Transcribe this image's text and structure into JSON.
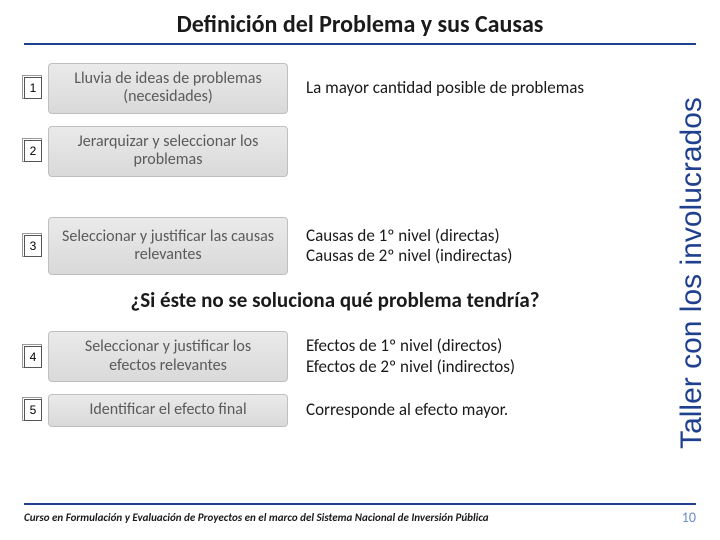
{
  "title": "Definición del Problema y sus Causas",
  "sidebar": "Taller con los involucrados",
  "steps": [
    {
      "num": "1",
      "label": "Lluvia de ideas de problemas (necesidades)",
      "desc": "La mayor cantidad posible de problemas"
    },
    {
      "num": "2",
      "label": "Jerarquizar y seleccionar los problemas",
      "desc": ""
    },
    {
      "num": "3",
      "label": "Seleccionar y justificar las causas relevantes",
      "desc": "Causas de 1º nivel (directas)\nCausas de 2º nivel (indirectas)"
    },
    {
      "num": "4",
      "label": "Seleccionar y justificar los efectos relevantes",
      "desc": "Efectos de 1º nivel (directos)\nEfectos de 2º nivel (indirectos)"
    },
    {
      "num": "5",
      "label": "Identificar el efecto final",
      "desc": "Corresponde al efecto mayor."
    }
  ],
  "question": "¿Si éste no se soluciona qué problema tendría?",
  "footer": "Curso en Formulación y Evaluación de Proyectos en el marco del Sistema Nacional de Inversión Pública",
  "page": "10",
  "colors": {
    "accent": "#1f3f8f",
    "box_bg": "#e0e0e0",
    "box_text": "#5a5a5a",
    "page_num": "#6a8bc9"
  }
}
